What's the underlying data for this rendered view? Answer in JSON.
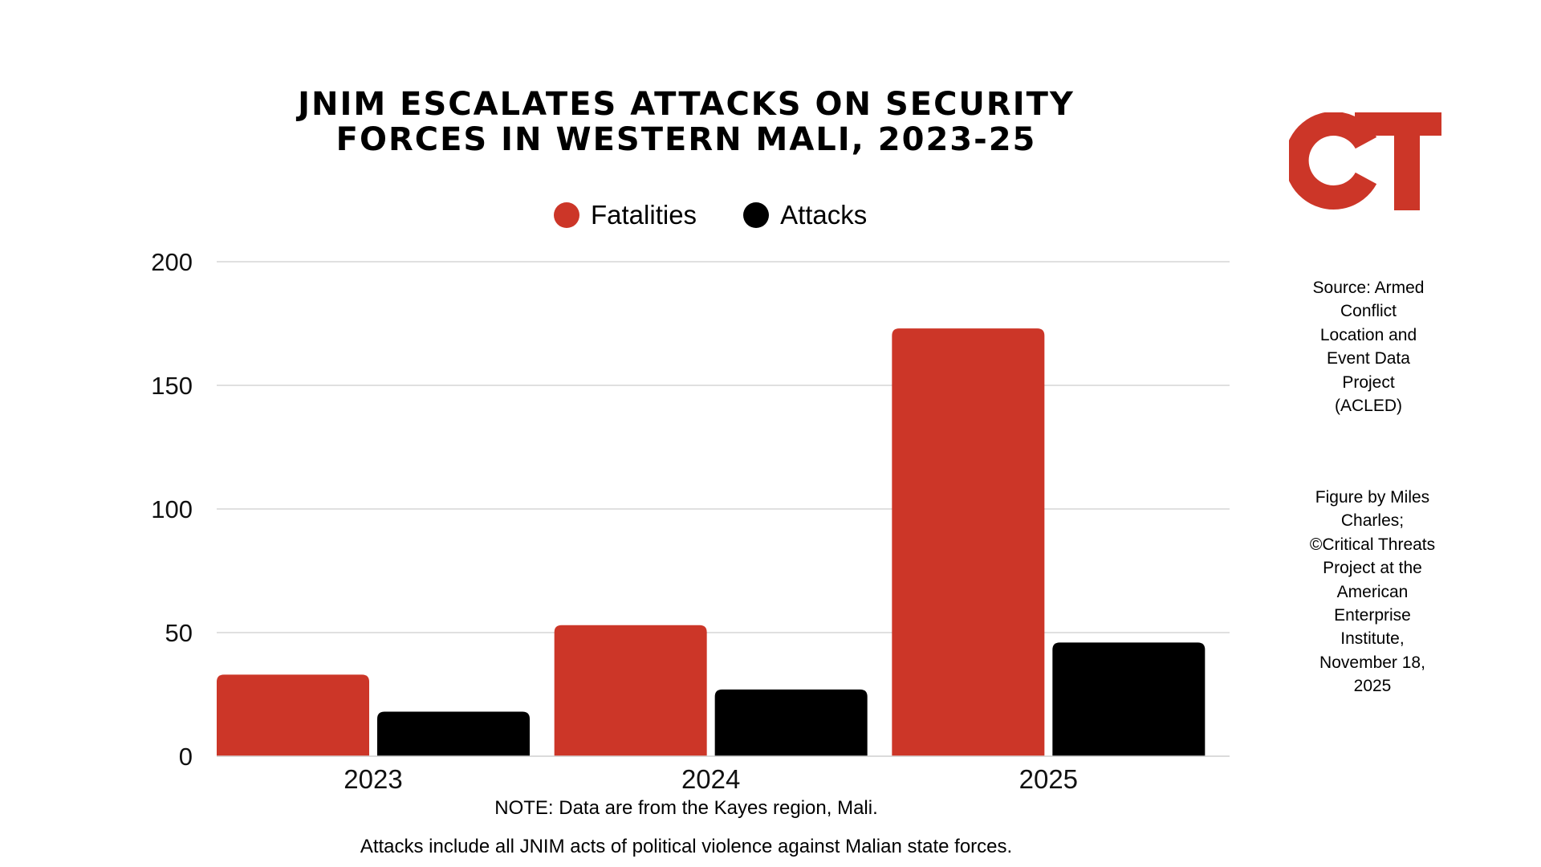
{
  "colors": {
    "fatalities": "#cc3628",
    "attacks": "#000000",
    "grid": "#d6d6d6",
    "logo": "#cc3628"
  },
  "logo": {
    "text": "CT"
  },
  "source": "Source: Armed Conflict Location and Event Data Project (ACLED)",
  "credit": "Figure by Miles Charles; ©Critical Threats Project at the American Enterprise Institute, November 18, 2025",
  "notes": {
    "line1": "NOTE: Data are from the Kayes region, Mali.",
    "line2": "Attacks include all JNIM acts of political violence against Malian state forces."
  },
  "chart_data": {
    "type": "bar",
    "title_lines": [
      "JNIM ESCALATES ATTACKS ON SECURITY",
      "FORCES IN WESTERN MALI, 2023-25"
    ],
    "categories": [
      "2023",
      "2024",
      "2025"
    ],
    "series": [
      {
        "name": "Fatalities",
        "values": [
          33,
          53,
          173
        ],
        "color": "#cc3628"
      },
      {
        "name": "Attacks",
        "values": [
          18,
          27,
          46
        ],
        "color": "#000000"
      }
    ],
    "ylim": [
      0,
      200
    ],
    "yticks": [
      0,
      50,
      100,
      150,
      200
    ],
    "ytick_labels": [
      "0",
      "50",
      "100",
      "150",
      "200"
    ],
    "xlabel": "",
    "ylabel": "",
    "grid": true,
    "legend_position": "top-center"
  }
}
